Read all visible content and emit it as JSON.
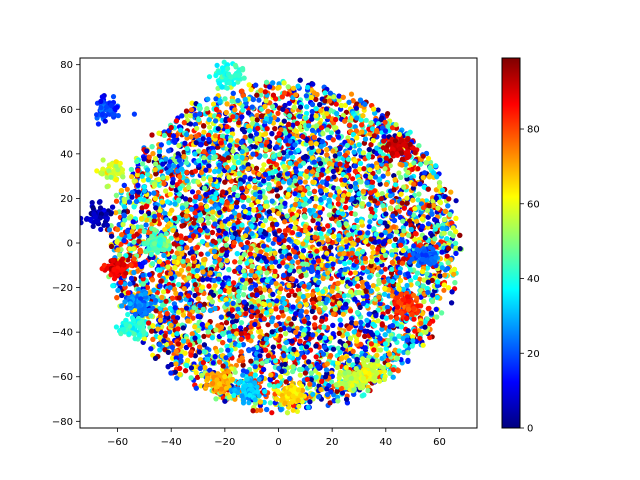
{
  "chart_data": {
    "type": "scatter",
    "title": "",
    "xlabel": "",
    "ylabel": "",
    "xlim": [
      -74,
      74
    ],
    "ylim": [
      -83,
      83
    ],
    "xticks": [
      -60,
      -40,
      -20,
      0,
      20,
      40,
      60
    ],
    "yticks": [
      -80,
      -60,
      -40,
      -20,
      0,
      20,
      40,
      60,
      80
    ],
    "grid": false,
    "legend": "none",
    "colormap": "jet",
    "colorbar": {
      "range": [
        0,
        99
      ],
      "ticks": [
        0,
        20,
        40,
        60,
        80
      ],
      "colors": [
        "#00007f",
        "#0000ff",
        "#007fff",
        "#00ffff",
        "#7fff7f",
        "#ffff00",
        "#ff7f00",
        "#ff0000",
        "#7f0000"
      ]
    },
    "point_count": 10000,
    "cloud": {
      "center": [
        2,
        -2
      ],
      "x_extent": [
        -68,
        66
      ],
      "y_extent": [
        -76,
        76
      ],
      "description_note": ""
    },
    "clusters": [
      {
        "x": -19,
        "y": 75,
        "value": 40
      },
      {
        "x": -60,
        "y": -12,
        "value": 88
      },
      {
        "x": -64,
        "y": 60,
        "value": 18
      },
      {
        "x": -67,
        "y": 12,
        "value": 5
      },
      {
        "x": -55,
        "y": -38,
        "value": 40
      },
      {
        "x": -52,
        "y": -27,
        "value": 25
      },
      {
        "x": 28,
        "y": -62,
        "value": 55
      },
      {
        "x": 35,
        "y": -58,
        "value": 58
      },
      {
        "x": 5,
        "y": -68,
        "value": 65
      },
      {
        "x": -22,
        "y": -63,
        "value": 70
      },
      {
        "x": -12,
        "y": -66,
        "value": 30
      },
      {
        "x": 48,
        "y": -28,
        "value": 82
      },
      {
        "x": 55,
        "y": -6,
        "value": 22
      },
      {
        "x": -45,
        "y": 0,
        "value": 45
      },
      {
        "x": -62,
        "y": 32,
        "value": 58
      },
      {
        "x": 45,
        "y": 42,
        "value": 92
      }
    ]
  }
}
